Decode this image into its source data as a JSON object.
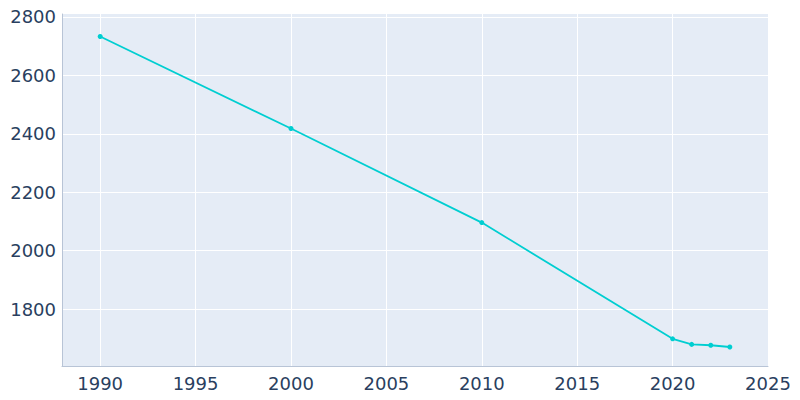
{
  "chart_data": {
    "type": "line",
    "x": [
      1990,
      2000,
      2010,
      2020,
      2021,
      2022,
      2023
    ],
    "values": [
      2733,
      2418,
      2096,
      1698,
      1679,
      1676,
      1670
    ],
    "color": "#00ced1",
    "marker": "circle",
    "xlim": [
      1988,
      2025
    ],
    "xticks": [
      1990,
      1995,
      2000,
      2005,
      2010,
      2015,
      2020,
      2025
    ],
    "ylim": [
      1605,
      2810
    ],
    "yticks": [
      1800,
      2000,
      2200,
      2400,
      2600,
      2800
    ],
    "grid": true
  }
}
